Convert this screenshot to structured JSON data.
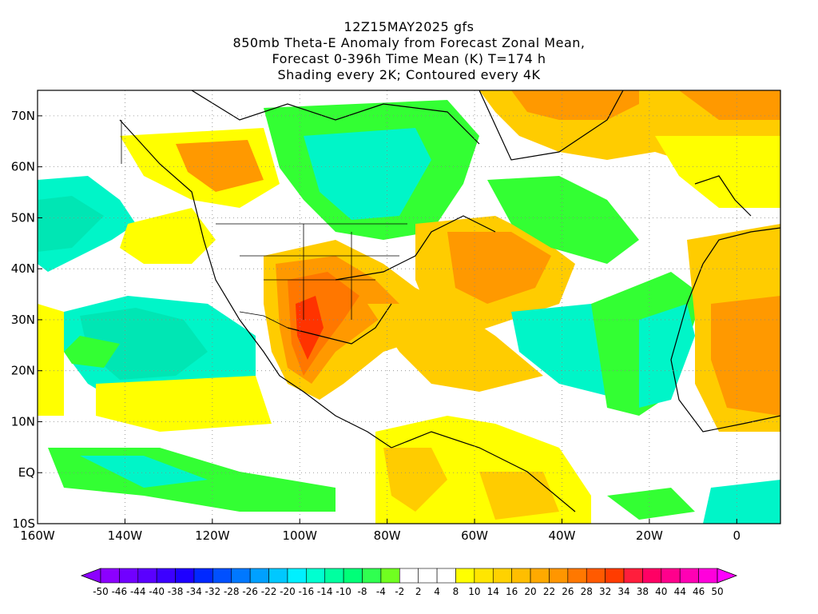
{
  "title": {
    "line1": "12Z15MAY2025 gfs",
    "line2": "850mb Theta-E Anomaly from Forecast Zonal Mean,",
    "line3": "Forecast 0-396h Time Mean (K) T=174 h",
    "line4": "Shading every 2K; Contoured every 4K"
  },
  "axes": {
    "lon_labels": [
      "160W",
      "140W",
      "120W",
      "100W",
      "80W",
      "60W",
      "40W",
      "20W",
      "0"
    ],
    "lat_labels": [
      "70N",
      "60N",
      "50N",
      "40N",
      "30N",
      "20N",
      "10N",
      "EQ",
      "10S"
    ],
    "lon_range": [
      -160,
      10
    ],
    "lat_range": [
      -10,
      75
    ]
  },
  "colorbar": {
    "labels": [
      "-50",
      "-46",
      "-44",
      "-40",
      "-38",
      "-34",
      "-32",
      "-28",
      "-26",
      "-22",
      "-20",
      "-16",
      "-14",
      "-10",
      "-8",
      "-4",
      "-2",
      "2",
      "4",
      "8",
      "10",
      "14",
      "16",
      "20",
      "22",
      "26",
      "28",
      "32",
      "34",
      "38",
      "40",
      "44",
      "46",
      "50"
    ],
    "colors": [
      "#8c00ff",
      "#7100ff",
      "#5a00ff",
      "#3c00ff",
      "#1e00ff",
      "#0028ff",
      "#0050ff",
      "#0078ff",
      "#00a0ff",
      "#00c8ff",
      "#00f0ff",
      "#00ffd0",
      "#00ffa0",
      "#00ff78",
      "#30ff50",
      "#70ff20",
      "#ffffff",
      "#ffffff",
      "#ffffff",
      "#ffff00",
      "#ffe600",
      "#ffd200",
      "#ffbe00",
      "#ffaa00",
      "#ff9600",
      "#ff7800",
      "#ff5a00",
      "#ff3c00",
      "#ff1e3c",
      "#ff0064",
      "#ff008c",
      "#ff00b4",
      "#ff00dc"
    ]
  },
  "colors": {
    "yellow": "#ffff00",
    "lightorange": "#ffcc00",
    "orange": "#ff9900",
    "darkorange": "#ff7700",
    "red": "#ff3300",
    "green": "#33ff33",
    "lightgreen": "#66ff33",
    "cyan": "#00f5c8",
    "teal": "#00e6b4"
  }
}
